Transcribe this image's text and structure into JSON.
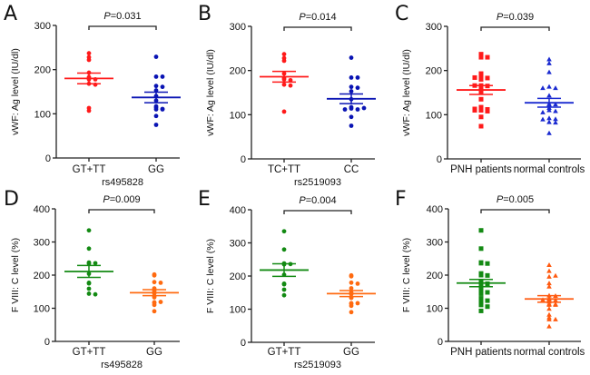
{
  "chart_data": [
    {
      "type": "scatter",
      "panel": "A",
      "ylabel": "vWF: Ag level (IU/dl)",
      "xlabel": "rs495828",
      "ylim": [
        0,
        300
      ],
      "yticks": [
        0,
        100,
        200,
        300
      ],
      "p_value_label": "P",
      "p_value": "=0.031",
      "marker": "circle",
      "groups": [
        {
          "name": "GT+TT",
          "color": "#ff1a1a",
          "mean": 180,
          "sem": 12,
          "values": [
            237,
            222,
            228,
            193,
            183,
            178,
            178,
            168,
            166,
            113,
            107
          ]
        },
        {
          "name": "GG",
          "color": "#0a14b4",
          "mean": 137,
          "sem": 12,
          "values": [
            229,
            184,
            184,
            163,
            161,
            153,
            140,
            130,
            117,
            114,
            110,
            110,
            111,
            95,
            75
          ]
        }
      ]
    },
    {
      "type": "scatter",
      "panel": "B",
      "ylabel": "vWF: Ag level (IU/dl)",
      "xlabel": "rs2519093",
      "ylim": [
        0,
        300
      ],
      "yticks": [
        0,
        100,
        200,
        300
      ],
      "p_value_label": "P",
      "p_value": "=0.014",
      "marker": "circle",
      "groups": [
        {
          "name": "TC+TT",
          "color": "#ff1a1a",
          "mean": 186,
          "sem": 12,
          "values": [
            237,
            222,
            228,
            193,
            183,
            180,
            178,
            168,
            166,
            107
          ]
        },
        {
          "name": "CC",
          "color": "#0a14b4",
          "mean": 136,
          "sem": 11,
          "values": [
            229,
            184,
            184,
            163,
            161,
            153,
            135,
            117,
            114,
            112,
            112,
            115,
            95,
            75
          ]
        }
      ]
    },
    {
      "type": "scatter",
      "panel": "C",
      "ylabel": "vWF: Ag level (IU/dl)",
      "xlabel": "",
      "ylim": [
        0,
        300
      ],
      "yticks": [
        0,
        100,
        200,
        300
      ],
      "p_value_label": "P",
      "p_value": "=0.039",
      "groups": [
        {
          "name": "PNH patients",
          "color": "#ff1a1a",
          "marker": "square",
          "mean": 156,
          "sem": 10,
          "values": [
            237,
            230,
            230,
            193,
            183,
            183,
            180,
            184,
            166,
            165,
            166,
            160,
            152,
            135,
            117,
            115,
            112,
            110,
            108,
            110,
            113,
            95,
            74
          ]
        },
        {
          "name": "normal controls",
          "color": "#1a2ad0",
          "marker": "triangle",
          "mean": 127,
          "sem": 10,
          "values": [
            225,
            216,
            196,
            163,
            160,
            160,
            143,
            124,
            123,
            122,
            115,
            110,
            108,
            105,
            92,
            90,
            89,
            83,
            82,
            58
          ]
        }
      ]
    },
    {
      "type": "scatter",
      "panel": "D",
      "ylabel": "F VIII: C level (%)",
      "xlabel": "rs495828",
      "ylim": [
        0,
        400
      ],
      "yticks": [
        0,
        100,
        200,
        300,
        400
      ],
      "p_value_label": "P",
      "p_value": "=0.009",
      "marker": "circle",
      "groups": [
        {
          "name": "GT+TT",
          "color": "#138a13",
          "mean": 211,
          "sem": 18,
          "values": [
            335,
            280,
            238,
            235,
            236,
            204,
            175,
            177,
            159,
            144,
            142
          ]
        },
        {
          "name": "GG",
          "color": "#ff6a10",
          "mean": 147,
          "sem": 9,
          "values": [
            202,
            199,
            179,
            177,
            160,
            152,
            145,
            136,
            133,
            118,
            119,
            116,
            110,
            91
          ]
        }
      ]
    },
    {
      "type": "scatter",
      "panel": "E",
      "ylabel": "F VIII: C level (%)",
      "xlabel": "rs2519093",
      "ylim": [
        0,
        400
      ],
      "yticks": [
        0,
        100,
        200,
        300,
        400
      ],
      "p_value_label": "P",
      "p_value": "=0.004",
      "marker": "circle",
      "groups": [
        {
          "name": "GT+TT",
          "color": "#138a13",
          "mean": 218,
          "sem": 19,
          "values": [
            335,
            280,
            238,
            235,
            236,
            204,
            175,
            177,
            159,
            142
          ]
        },
        {
          "name": "GG",
          "color": "#ff6a10",
          "mean": 147,
          "sem": 9,
          "values": [
            202,
            199,
            180,
            177,
            163,
            150,
            145,
            135,
            134,
            118,
            118,
            116,
            110,
            91
          ]
        }
      ]
    },
    {
      "type": "scatter",
      "panel": "F",
      "ylabel": "F VIII: C level (%)",
      "xlabel": "",
      "ylim": [
        0,
        400
      ],
      "yticks": [
        0,
        100,
        200,
        300,
        400
      ],
      "p_value_label": "P",
      "p_value": "=0.005",
      "groups": [
        {
          "name": "PNH patients",
          "color": "#138a13",
          "marker": "square",
          "mean": 176,
          "sem": 11,
          "values": [
            335,
            280,
            238,
            236,
            235,
            205,
            200,
            199,
            180,
            176,
            174,
            165,
            160,
            150,
            148,
            144,
            130,
            128,
            123,
            110,
            105,
            120,
            92
          ]
        },
        {
          "name": "normal controls",
          "color": "#ff5a10",
          "marker": "triangle",
          "mean": 128,
          "sem": 10,
          "values": [
            230,
            212,
            195,
            198,
            175,
            165,
            138,
            137,
            130,
            126,
            124,
            125,
            120,
            113,
            110,
            112,
            110,
            98,
            80,
            72,
            66,
            66,
            45
          ]
        }
      ]
    }
  ]
}
